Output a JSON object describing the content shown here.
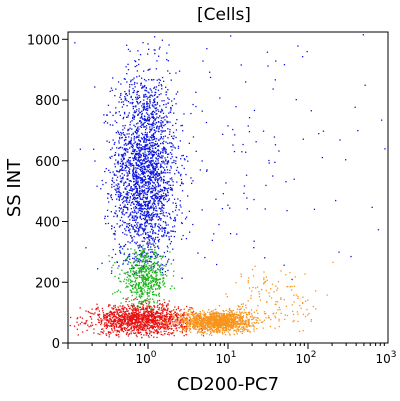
{
  "chart_data": {
    "type": "scatter",
    "title": "[Cells]",
    "xlabel": "CD200-PC7",
    "ylabel": "SS INT",
    "x_scale": "log",
    "xlim": [
      0.1,
      1000
    ],
    "ylim": [
      0,
      1024
    ],
    "x_ticks": [
      {
        "v": 1,
        "mant": "10",
        "exp": "0"
      },
      {
        "v": 10,
        "mant": "10",
        "exp": "1"
      },
      {
        "v": 100,
        "mant": "10",
        "exp": "2"
      },
      {
        "v": 1000,
        "mant": "10",
        "exp": "3"
      }
    ],
    "y_ticks": [
      0,
      200,
      400,
      600,
      800,
      1000
    ],
    "grid": false,
    "series": [
      {
        "color": "#0a14e0",
        "approx_points": 2600,
        "clusters": [
          {
            "x_center": 0.9,
            "x_sigma_decades": 0.2,
            "y_center": 560,
            "y_sigma": 170,
            "y_min": 230,
            "y_max": 1024,
            "weight": 0.93
          },
          {
            "x_center": 8,
            "x_sigma_decades": 0.9,
            "y_center": 550,
            "y_sigma": 250,
            "y_min": 200,
            "y_max": 1024,
            "weight": 0.07
          }
        ]
      },
      {
        "color": "#18b418",
        "approx_points": 550,
        "clusters": [
          {
            "x_center": 0.9,
            "x_sigma_decades": 0.15,
            "y_center": 215,
            "y_sigma": 45,
            "y_min": 110,
            "y_max": 330,
            "weight": 1.0
          }
        ]
      },
      {
        "color": "#e81010",
        "approx_points": 1400,
        "clusters": [
          {
            "x_center": 0.8,
            "x_sigma_decades": 0.3,
            "y_center": 78,
            "y_sigma": 25,
            "y_min": 20,
            "y_max": 150,
            "weight": 1.0
          }
        ]
      },
      {
        "color": "#f7941d",
        "approx_points": 1500,
        "clusters": [
          {
            "x_center": 7,
            "x_sigma_decades": 0.22,
            "y_center": 72,
            "y_sigma": 18,
            "y_min": 25,
            "y_max": 130,
            "weight": 0.9
          },
          {
            "x_center": 40,
            "x_sigma_decades": 0.3,
            "y_center": 140,
            "y_sigma": 60,
            "y_min": 40,
            "y_max": 320,
            "weight": 0.1
          }
        ]
      }
    ]
  }
}
